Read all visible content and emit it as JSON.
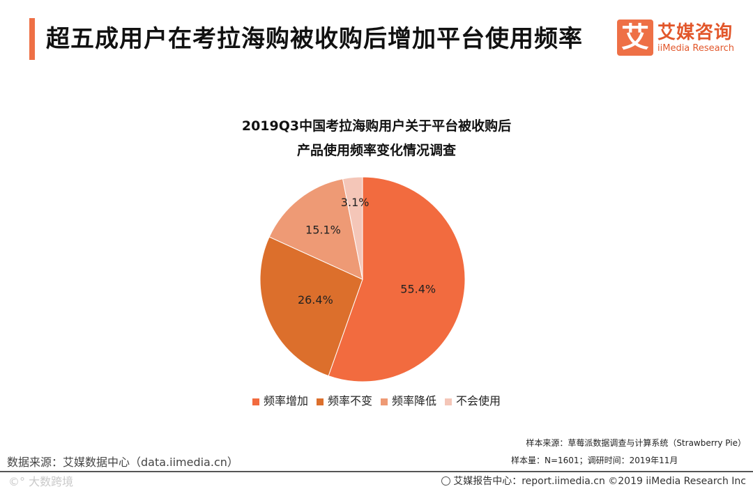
{
  "header": {
    "title": "超五成用户在考拉海购被收购后增加平台使用频率",
    "brand_name": "艾媒咨询",
    "brand_sub": "iiMedia Research",
    "brand_mark": "艾",
    "accent_color": "#ee7046"
  },
  "chart_data": {
    "type": "pie",
    "title_line1": "2019Q3中国考拉海购用户关于平台被收购后",
    "title_line2": "产品使用频率变化情况调查",
    "unit": "%",
    "legend_position": "bottom",
    "series": [
      {
        "name": "频率增加",
        "value": 55.4,
        "label": "55.4%",
        "color": "#f26b3f"
      },
      {
        "name": "频率不变",
        "value": 26.4,
        "label": "26.4%",
        "color": "#dc6f2c"
      },
      {
        "name": "频率降低",
        "value": 15.1,
        "label": "15.1%",
        "color": "#ee9a75"
      },
      {
        "name": "不会使用",
        "value": 3.1,
        "label": "3.1%",
        "color": "#f4c6b8"
      }
    ]
  },
  "notes": {
    "sample_source": "样本来源：草莓派数据调查与计算系统（Strawberry Pie）",
    "sample_size": "样本量：N=1601；调研时间：2019年11月",
    "data_source": "数据来源：艾媒数据中心（data.iimedia.cn）"
  },
  "footer": {
    "left": "©° 大数跨境",
    "right_icon": "globe-icon",
    "right": "艾媒报告中心：report.iimedia.cn   ©2019  iiMedia Research  Inc"
  }
}
